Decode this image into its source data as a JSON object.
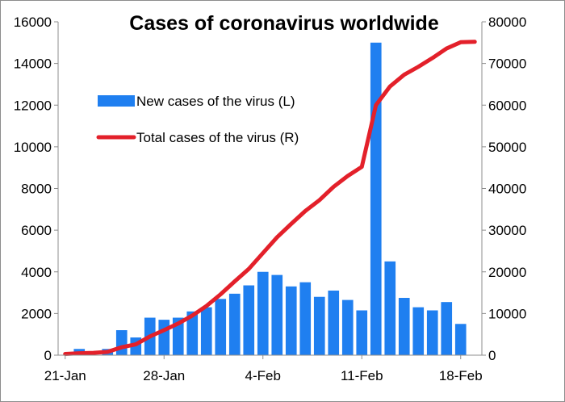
{
  "chart_data": {
    "type": "bar+line",
    "title": "Cases of coronavirus worldwide",
    "x_tick_labels": [
      "21-Jan",
      "28-Jan",
      "4-Feb",
      "11-Feb",
      "18-Feb"
    ],
    "x_tick_index": [
      0,
      7,
      14,
      21,
      28
    ],
    "y_left": {
      "min": 0,
      "max": 16000,
      "step": 2000,
      "ticks": [
        "0",
        "2000",
        "4000",
        "6000",
        "8000",
        "10000",
        "12000",
        "14000",
        "16000"
      ]
    },
    "y_right": {
      "min": 0,
      "max": 80000,
      "step": 10000,
      "ticks": [
        "0",
        "10000",
        "20000",
        "30000",
        "40000",
        "50000",
        "60000",
        "70000",
        "80000"
      ]
    },
    "legend_position": "upper-left inside plot",
    "grid": false,
    "series": [
      {
        "name": "New cases of the virus (L)",
        "type": "bar",
        "axis": "left",
        "color": "#1f7ff0",
        "values": [
          0,
          300,
          0,
          300,
          1200,
          850,
          1800,
          1700,
          1800,
          2100,
          2300,
          2700,
          2950,
          3350,
          4000,
          3850,
          3300,
          3500,
          2800,
          3100,
          2650,
          2150,
          15000,
          4500,
          2750,
          2300,
          2150,
          2550,
          1500,
          0
        ]
      },
      {
        "name": "Total cases of the virus (R)",
        "type": "line",
        "axis": "right",
        "color": "#e3202a",
        "values": [
          300,
          450,
          550,
          800,
          1900,
          2600,
          4500,
          6000,
          7600,
          9500,
          11800,
          14600,
          17700,
          20700,
          24500,
          28300,
          31500,
          34600,
          37200,
          40400,
          43000,
          45200,
          60000,
          64500,
          67300,
          69200,
          71300,
          73600,
          75100,
          75200
        ]
      }
    ]
  }
}
